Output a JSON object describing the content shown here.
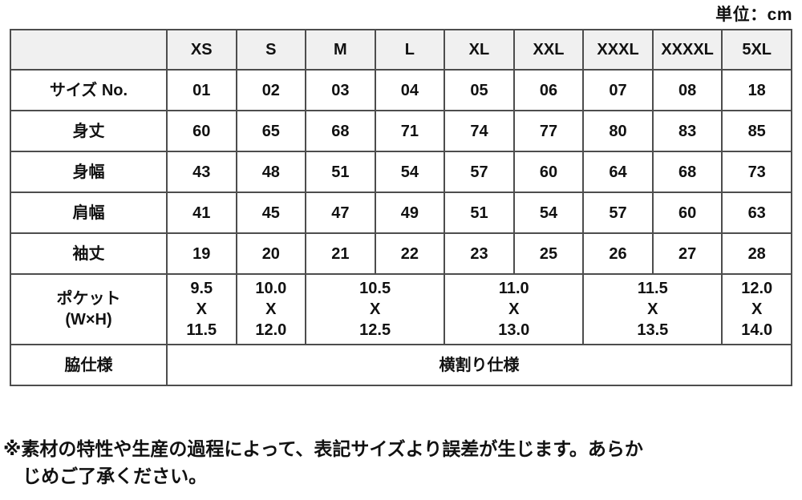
{
  "unit_label": "単位：cm",
  "table": {
    "header": [
      "",
      "XS",
      "S",
      "M",
      "L",
      "XL",
      "XXL",
      "XXXL",
      "XXXXL",
      "5XL"
    ],
    "rows": [
      {
        "label": "サイズ No.",
        "cells": [
          {
            "text": "01",
            "span": 1
          },
          {
            "text": "02",
            "span": 1
          },
          {
            "text": "03",
            "span": 1
          },
          {
            "text": "04",
            "span": 1
          },
          {
            "text": "05",
            "span": 1
          },
          {
            "text": "06",
            "span": 1
          },
          {
            "text": "07",
            "span": 1
          },
          {
            "text": "08",
            "span": 1
          },
          {
            "text": "18",
            "span": 1
          }
        ]
      },
      {
        "label": "身丈",
        "cells": [
          {
            "text": "60",
            "span": 1
          },
          {
            "text": "65",
            "span": 1
          },
          {
            "text": "68",
            "span": 1
          },
          {
            "text": "71",
            "span": 1
          },
          {
            "text": "74",
            "span": 1
          },
          {
            "text": "77",
            "span": 1
          },
          {
            "text": "80",
            "span": 1
          },
          {
            "text": "83",
            "span": 1
          },
          {
            "text": "85",
            "span": 1
          }
        ]
      },
      {
        "label": "身幅",
        "cells": [
          {
            "text": "43",
            "span": 1
          },
          {
            "text": "48",
            "span": 1
          },
          {
            "text": "51",
            "span": 1
          },
          {
            "text": "54",
            "span": 1
          },
          {
            "text": "57",
            "span": 1
          },
          {
            "text": "60",
            "span": 1
          },
          {
            "text": "64",
            "span": 1
          },
          {
            "text": "68",
            "span": 1
          },
          {
            "text": "73",
            "span": 1
          }
        ]
      },
      {
        "label": "肩幅",
        "cells": [
          {
            "text": "41",
            "span": 1
          },
          {
            "text": "45",
            "span": 1
          },
          {
            "text": "47",
            "span": 1
          },
          {
            "text": "49",
            "span": 1
          },
          {
            "text": "51",
            "span": 1
          },
          {
            "text": "54",
            "span": 1
          },
          {
            "text": "57",
            "span": 1
          },
          {
            "text": "60",
            "span": 1
          },
          {
            "text": "63",
            "span": 1
          }
        ]
      },
      {
        "label": "袖丈",
        "cells": [
          {
            "text": "19",
            "span": 1
          },
          {
            "text": "20",
            "span": 1
          },
          {
            "text": "21",
            "span": 1
          },
          {
            "text": "22",
            "span": 1
          },
          {
            "text": "23",
            "span": 1
          },
          {
            "text": "25",
            "span": 1
          },
          {
            "text": "26",
            "span": 1
          },
          {
            "text": "27",
            "span": 1
          },
          {
            "text": "28",
            "span": 1
          }
        ]
      },
      {
        "label": "ポケット\n(W×H)",
        "cells": [
          {
            "text": "9.5\nX\n11.5",
            "span": 1
          },
          {
            "text": "10.0\nX\n12.0",
            "span": 1
          },
          {
            "text": "10.5\nX\n12.5",
            "span": 2
          },
          {
            "text": "11.0\nX\n13.0",
            "span": 2
          },
          {
            "text": "11.5\nX\n13.5",
            "span": 2
          },
          {
            "text": "12.0\nX\n14.0",
            "span": 1
          }
        ]
      },
      {
        "label": "脇仕様",
        "cells": [
          {
            "text": "横割り仕様",
            "span": 9
          }
        ]
      }
    ]
  },
  "note": {
    "line1": "※素材の特性や生産の過程によって、表記サイズより誤差が生じます。あらか",
    "line2": "じめご了承ください。"
  },
  "colors": {
    "header_bg": "#f0f0f0",
    "border": "#4d4d4d",
    "text": "#111111",
    "background": "#ffffff"
  }
}
